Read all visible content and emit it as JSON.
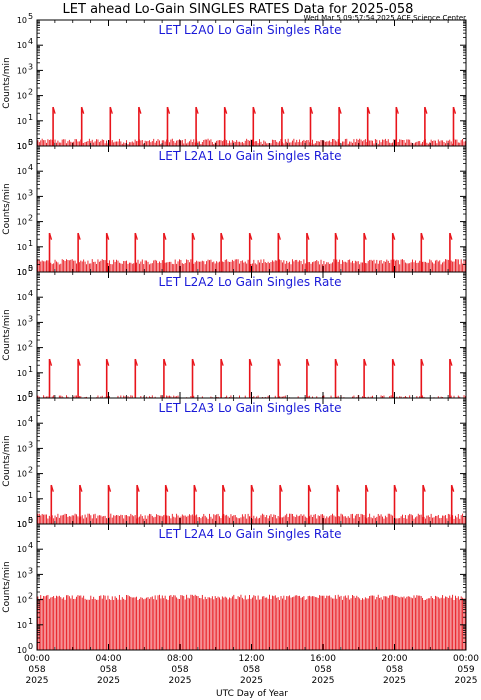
{
  "header": {
    "title": "LET ahead Lo-Gain SINGLES RATES Data for 2025-058",
    "timestamp": "Wed Mar  5 09:57:54 2025 ACE Science Center"
  },
  "chart_data": {
    "type": "line",
    "xlabel": "UTC Day of Year",
    "xlim": [
      0,
      24
    ],
    "yscale": "log",
    "ylim": [
      1,
      100000
    ],
    "grid": false,
    "x_ticks": [
      {
        "hour": 0,
        "l1": "00:00",
        "l2": "058",
        "l3": "2025"
      },
      {
        "hour": 4,
        "l1": "04:00",
        "l2": "058",
        "l3": "2025"
      },
      {
        "hour": 8,
        "l1": "08:00",
        "l2": "058",
        "l3": "2025"
      },
      {
        "hour": 12,
        "l1": "12:00",
        "l2": "058",
        "l3": "2025"
      },
      {
        "hour": 16,
        "l1": "16:00",
        "l2": "058",
        "l3": "2025"
      },
      {
        "hour": 20,
        "l1": "20:00",
        "l2": "058",
        "l3": "2025"
      },
      {
        "hour": 24,
        "l1": "00:00",
        "l2": "059",
        "l3": "2025"
      }
    ],
    "y_ticks": [
      {
        "value": 1,
        "exp": "0"
      },
      {
        "value": 10,
        "exp": "1"
      },
      {
        "value": 100,
        "exp": "2"
      },
      {
        "value": 1000,
        "exp": "3"
      },
      {
        "value": 10000,
        "exp": "4"
      },
      {
        "value": 100000,
        "exp": "5"
      }
    ],
    "ylabel": "Counts/min",
    "panels": [
      {
        "label": "LET L2A0 Lo Gain Singles Rate",
        "baseline": 1.5,
        "spikes": [
          {
            "x": 0.9,
            "y": 35
          },
          {
            "x": 2.5,
            "y": 35
          },
          {
            "x": 4.1,
            "y": 35
          },
          {
            "x": 5.7,
            "y": 35
          },
          {
            "x": 7.3,
            "y": 35
          },
          {
            "x": 8.9,
            "y": 35
          },
          {
            "x": 10.5,
            "y": 35
          },
          {
            "x": 12.1,
            "y": 35
          },
          {
            "x": 13.7,
            "y": 35
          },
          {
            "x": 15.3,
            "y": 35
          },
          {
            "x": 16.9,
            "y": 35
          },
          {
            "x": 18.5,
            "y": 35
          },
          {
            "x": 20.1,
            "y": 35
          },
          {
            "x": 21.7,
            "y": 35
          },
          {
            "x": 23.3,
            "y": 35
          }
        ]
      },
      {
        "label": "LET L2A1 Lo Gain Singles Rate",
        "baseline": 2.5,
        "spikes": [
          {
            "x": 0.7,
            "y": 35
          },
          {
            "x": 2.3,
            "y": 35
          },
          {
            "x": 3.9,
            "y": 35
          },
          {
            "x": 5.5,
            "y": 35
          },
          {
            "x": 7.1,
            "y": 35
          },
          {
            "x": 8.7,
            "y": 35
          },
          {
            "x": 10.3,
            "y": 35
          },
          {
            "x": 11.9,
            "y": 35
          },
          {
            "x": 13.5,
            "y": 35
          },
          {
            "x": 15.1,
            "y": 35
          },
          {
            "x": 16.7,
            "y": 35
          },
          {
            "x": 18.3,
            "y": 35
          },
          {
            "x": 19.9,
            "y": 35
          },
          {
            "x": 21.5,
            "y": 35
          },
          {
            "x": 23.1,
            "y": 35
          }
        ]
      },
      {
        "label": "LET L2A2 Lo Gain Singles Rate",
        "baseline": 1.0,
        "spikes": [
          {
            "x": 0.7,
            "y": 35
          },
          {
            "x": 2.3,
            "y": 35
          },
          {
            "x": 3.9,
            "y": 35
          },
          {
            "x": 5.5,
            "y": 35
          },
          {
            "x": 7.1,
            "y": 35
          },
          {
            "x": 8.7,
            "y": 35
          },
          {
            "x": 10.3,
            "y": 35
          },
          {
            "x": 11.9,
            "y": 35
          },
          {
            "x": 13.5,
            "y": 35
          },
          {
            "x": 15.1,
            "y": 35
          },
          {
            "x": 16.7,
            "y": 35
          },
          {
            "x": 18.3,
            "y": 35
          },
          {
            "x": 19.9,
            "y": 35
          },
          {
            "x": 21.5,
            "y": 35
          },
          {
            "x": 23.1,
            "y": 35
          }
        ]
      },
      {
        "label": "LET L2A3 Lo Gain Singles Rate",
        "baseline": 2.0,
        "spikes": [
          {
            "x": 0.8,
            "y": 35
          },
          {
            "x": 2.4,
            "y": 35
          },
          {
            "x": 4.0,
            "y": 35
          },
          {
            "x": 5.6,
            "y": 35
          },
          {
            "x": 7.2,
            "y": 35
          },
          {
            "x": 8.8,
            "y": 35
          },
          {
            "x": 10.4,
            "y": 35
          },
          {
            "x": 12.0,
            "y": 35
          },
          {
            "x": 13.6,
            "y": 35
          },
          {
            "x": 15.2,
            "y": 35
          },
          {
            "x": 16.8,
            "y": 35
          },
          {
            "x": 18.4,
            "y": 35
          },
          {
            "x": 20.0,
            "y": 35
          },
          {
            "x": 21.6,
            "y": 35
          },
          {
            "x": 23.2,
            "y": 35
          }
        ]
      },
      {
        "label": "LET L2A4 Lo Gain Singles Rate",
        "baseline": 120,
        "spikes": []
      }
    ],
    "colors": {
      "data": "#e8141b",
      "label": "#1a1ad8",
      "axis": "#000000"
    }
  }
}
